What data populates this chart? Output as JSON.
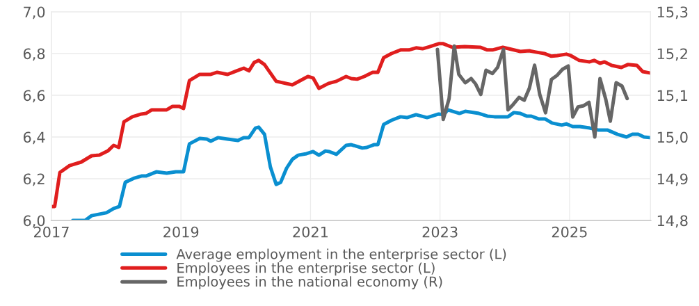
{
  "chart_data": {
    "type": "line",
    "xlim": [
      2017,
      2026.25
    ],
    "xticks": [
      2017,
      2019,
      2021,
      2023,
      2025
    ],
    "ylim": [
      6.0,
      7.0
    ],
    "yticks": [
      {
        "value": 6.0,
        "label": "6,0"
      },
      {
        "value": 6.2,
        "label": "6,2"
      },
      {
        "value": 6.4,
        "label": "6,4"
      },
      {
        "value": 6.6,
        "label": "6,6"
      },
      {
        "value": 6.8,
        "label": "6,8"
      },
      {
        "value": 7.0,
        "label": "7,0"
      }
    ],
    "y2lim": [
      14.8,
      15.3
    ],
    "y2ticks": [
      {
        "value": 14.8,
        "label": "14,8"
      },
      {
        "value": 14.9,
        "label": "14,9"
      },
      {
        "value": 15.0,
        "label": "15,0"
      },
      {
        "value": 15.1,
        "label": "15,1"
      },
      {
        "value": 15.2,
        "label": "15,2"
      },
      {
        "value": 15.3,
        "label": "15,3"
      }
    ],
    "grid": true,
    "legend": "bottom",
    "marker": "none",
    "line_style": "solid",
    "series": [
      {
        "name": "Average employment in the enterprise sector (L)",
        "color": "#0a8fd0",
        "x": [
          2017.33,
          2017.52,
          2017.62,
          2017.85,
          2017.96,
          2018.05,
          2018.14,
          2018.28,
          2018.39,
          2018.46,
          2018.62,
          2018.78,
          2018.92,
          2019.04,
          2019.13,
          2019.29,
          2019.4,
          2019.46,
          2019.57,
          2019.72,
          2019.88,
          2019.97,
          2020.05,
          2020.15,
          2020.2,
          2020.29,
          2020.38,
          2020.47,
          2020.54,
          2020.63,
          2020.72,
          2020.81,
          2020.94,
          2021.04,
          2021.13,
          2021.23,
          2021.29,
          2021.4,
          2021.55,
          2021.63,
          2021.8,
          2021.87,
          2021.98,
          2022.04,
          2022.13,
          2022.25,
          2022.39,
          2022.49,
          2022.63,
          2022.8,
          2022.98,
          2023.06,
          2023.12,
          2023.3,
          2023.39,
          2023.6,
          2023.73,
          2023.84,
          2024.05,
          2024.14,
          2024.24,
          2024.34,
          2024.41,
          2024.52,
          2024.62,
          2024.73,
          2024.88,
          2024.95,
          2025.05,
          2025.16,
          2025.31,
          2025.45,
          2025.59,
          2025.74,
          2025.88,
          2025.97,
          2026.06,
          2026.15,
          2026.24
        ],
        "values": [
          6.0,
          6.0,
          6.023,
          6.037,
          6.057,
          6.067,
          6.183,
          6.203,
          6.213,
          6.213,
          6.233,
          6.227,
          6.233,
          6.233,
          6.367,
          6.393,
          6.39,
          6.38,
          6.397,
          6.39,
          6.383,
          6.397,
          6.397,
          6.443,
          6.447,
          6.413,
          6.257,
          6.173,
          6.183,
          6.25,
          6.293,
          6.313,
          6.32,
          6.33,
          6.313,
          6.333,
          6.33,
          6.317,
          6.36,
          6.363,
          6.347,
          6.35,
          6.363,
          6.363,
          6.46,
          6.48,
          6.497,
          6.493,
          6.507,
          6.493,
          6.51,
          6.507,
          6.53,
          6.513,
          6.523,
          6.513,
          6.5,
          6.497,
          6.497,
          6.517,
          6.513,
          6.5,
          6.5,
          6.487,
          6.487,
          6.467,
          6.457,
          6.463,
          6.45,
          6.45,
          6.443,
          6.433,
          6.433,
          6.413,
          6.4,
          6.413,
          6.413,
          6.4,
          6.397
        ]
      },
      {
        "name": "Employees in the enterprise sector (L)",
        "color": "#e01e1e",
        "x": [
          2017.01,
          2017.05,
          2017.13,
          2017.28,
          2017.46,
          2017.62,
          2017.74,
          2017.87,
          2017.96,
          2018.04,
          2018.12,
          2018.25,
          2018.39,
          2018.46,
          2018.55,
          2018.78,
          2018.87,
          2018.97,
          2019.04,
          2019.13,
          2019.29,
          2019.46,
          2019.56,
          2019.72,
          2019.86,
          2019.97,
          2020.05,
          2020.13,
          2020.2,
          2020.29,
          2020.47,
          2020.72,
          2020.96,
          2021.04,
          2021.13,
          2021.28,
          2021.4,
          2021.55,
          2021.63,
          2021.72,
          2021.83,
          2021.96,
          2022.04,
          2022.13,
          2022.25,
          2022.39,
          2022.52,
          2022.63,
          2022.73,
          2022.84,
          2022.98,
          2023.05,
          2023.19,
          2023.38,
          2023.62,
          2023.73,
          2023.81,
          2023.97,
          2024.24,
          2024.38,
          2024.48,
          2024.61,
          2024.72,
          2024.81,
          2024.95,
          2025.02,
          2025.15,
          2025.31,
          2025.38,
          2025.47,
          2025.54,
          2025.65,
          2025.8,
          2025.9,
          2026.04,
          2026.13,
          2026.24
        ],
        "values": [
          6.067,
          6.067,
          6.23,
          6.263,
          6.28,
          6.31,
          6.313,
          6.333,
          6.36,
          6.35,
          6.473,
          6.497,
          6.51,
          6.513,
          6.53,
          6.53,
          6.547,
          6.547,
          6.537,
          6.67,
          6.7,
          6.7,
          6.71,
          6.7,
          6.717,
          6.73,
          6.717,
          6.757,
          6.767,
          6.747,
          6.667,
          6.65,
          6.69,
          6.683,
          6.633,
          6.657,
          6.667,
          6.69,
          6.68,
          6.677,
          6.69,
          6.71,
          6.71,
          6.78,
          6.8,
          6.817,
          6.817,
          6.827,
          6.823,
          6.833,
          6.847,
          6.847,
          6.83,
          6.833,
          6.83,
          6.817,
          6.817,
          6.83,
          6.81,
          6.813,
          6.807,
          6.8,
          6.787,
          6.79,
          6.797,
          6.79,
          6.767,
          6.76,
          6.767,
          6.753,
          6.76,
          6.743,
          6.733,
          6.747,
          6.743,
          6.713,
          6.707
        ]
      },
      {
        "name": "Employees in the national economy (R)",
        "color": "#666666",
        "axis": "y2",
        "x": [
          2022.96,
          2023.05,
          2023.14,
          2023.22,
          2023.29,
          2023.39,
          2023.48,
          2023.55,
          2023.63,
          2023.71,
          2023.81,
          2023.89,
          2023.98,
          2024.05,
          2024.13,
          2024.22,
          2024.3,
          2024.38,
          2024.46,
          2024.54,
          2024.63,
          2024.72,
          2024.81,
          2024.89,
          2024.98,
          2025.05,
          2025.13,
          2025.22,
          2025.3,
          2025.39,
          2025.47,
          2025.56,
          2025.63,
          2025.72,
          2025.81,
          2025.89
        ],
        "values": [
          15.21,
          15.042,
          15.092,
          15.218,
          15.15,
          15.13,
          15.14,
          15.127,
          15.102,
          15.16,
          15.152,
          15.167,
          15.21,
          15.065,
          15.078,
          15.095,
          15.088,
          15.117,
          15.172,
          15.102,
          15.058,
          15.138,
          15.148,
          15.162,
          15.17,
          15.048,
          15.072,
          15.075,
          15.083,
          15.0,
          15.14,
          15.09,
          15.038,
          15.13,
          15.122,
          15.092
        ]
      }
    ]
  }
}
